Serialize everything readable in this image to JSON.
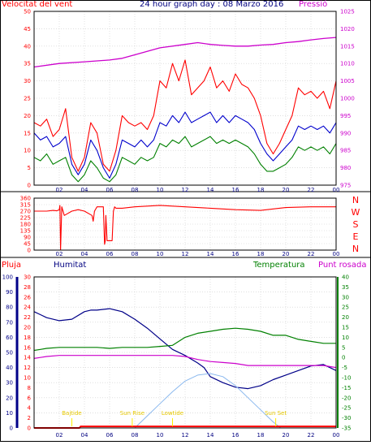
{
  "colors": {
    "red": "#ff0000",
    "blue": "#0000cc",
    "green": "#008000",
    "magenta": "#cc00cc",
    "navy": "#000080",
    "light_blue": "#8ab8ee",
    "dark_blue": "#000088",
    "yellow": "#ffee00",
    "gray_grid": "#cccccc"
  },
  "chart_data": [
    {
      "type": "line",
      "title": "24 hour graph day : 08 Marzo 2016",
      "left_label": "Velocitat del vent",
      "right_label": "Pressió",
      "ylim_left": [
        0,
        50
      ],
      "ylim_right": [
        975,
        1025
      ],
      "yticks_left": [
        "0",
        "5",
        "10",
        "15",
        "20",
        "25",
        "30",
        "35",
        "40",
        "45",
        "50"
      ],
      "yticks_right": [
        "975",
        "980",
        "985",
        "990",
        "995",
        "1000",
        "1005",
        "1010",
        "1015",
        "1020",
        "1025"
      ],
      "x_hours": [
        "02",
        "04",
        "06",
        "08",
        "10",
        "12",
        "14",
        "16",
        "18",
        "20",
        "22",
        "00"
      ],
      "series": [
        {
          "role": "gust",
          "color": "#ff0000",
          "x": [
            0,
            0.5,
            1,
            1.5,
            2,
            2.5,
            3,
            3.5,
            4,
            4.5,
            5,
            5.5,
            6,
            6.5,
            7,
            7.5,
            8,
            8.5,
            9,
            9.5,
            10,
            10.5,
            11,
            11.5,
            12,
            12.5,
            13,
            13.5,
            14,
            14.5,
            15,
            15.5,
            16,
            16.5,
            17,
            17.5,
            18,
            18.5,
            19,
            19.5,
            20,
            20.5,
            21,
            21.5,
            22,
            22.5,
            23,
            23.5,
            24
          ],
          "values": [
            18,
            17,
            19,
            14,
            16,
            22,
            8,
            4,
            8,
            18,
            15,
            6,
            4,
            10,
            20,
            18,
            17,
            18,
            16,
            20,
            30,
            28,
            35,
            30,
            36,
            26,
            28,
            30,
            34,
            28,
            30,
            27,
            32,
            29,
            28,
            25,
            20,
            12,
            9,
            12,
            16,
            20,
            28,
            26,
            27,
            25,
            27,
            22,
            30
          ]
        },
        {
          "role": "mean",
          "color": "#0000cc",
          "x": [
            0,
            0.5,
            1,
            1.5,
            2,
            2.5,
            3,
            3.5,
            4,
            4.5,
            5,
            5.5,
            6,
            6.5,
            7,
            7.5,
            8,
            8.5,
            9,
            9.5,
            10,
            10.5,
            11,
            11.5,
            12,
            12.5,
            13,
            13.5,
            14,
            14.5,
            15,
            15.5,
            16,
            16.5,
            17,
            17.5,
            18,
            18.5,
            19,
            19.5,
            20,
            20.5,
            21,
            21.5,
            22,
            22.5,
            23,
            23.5,
            24
          ],
          "values": [
            15,
            13,
            14,
            11,
            12,
            14,
            6,
            3,
            6,
            13,
            10,
            5,
            2,
            6,
            13,
            12,
            11,
            13,
            11,
            13,
            18,
            17,
            20,
            18,
            21,
            18,
            19,
            20,
            21,
            18,
            20,
            18,
            20,
            19,
            18,
            16,
            12,
            9,
            7,
            9,
            11,
            13,
            17,
            16,
            17,
            16,
            17,
            15,
            18
          ]
        },
        {
          "role": "low",
          "color": "#008000",
          "x": [
            0,
            0.5,
            1,
            1.5,
            2,
            2.5,
            3,
            3.5,
            4,
            4.5,
            5,
            5.5,
            6,
            6.5,
            7,
            7.5,
            8,
            8.5,
            9,
            9.5,
            10,
            10.5,
            11,
            11.5,
            12,
            12.5,
            13,
            13.5,
            14,
            14.5,
            15,
            15.5,
            16,
            16.5,
            17,
            17.5,
            18,
            18.5,
            19,
            19.5,
            20,
            20.5,
            21,
            21.5,
            22,
            22.5,
            23,
            23.5,
            24
          ],
          "values": [
            8,
            7,
            9,
            6,
            7,
            8,
            3,
            1,
            3,
            7,
            5,
            2,
            1,
            3,
            8,
            7,
            6,
            8,
            7,
            8,
            12,
            11,
            13,
            12,
            14,
            11,
            12,
            13,
            14,
            12,
            13,
            12,
            13,
            12,
            11,
            9,
            6,
            4,
            4,
            5,
            6,
            8,
            11,
            10,
            11,
            10,
            11,
            9,
            12
          ]
        },
        {
          "role": "pressure",
          "color": "#cc00cc",
          "x": [
            0,
            2,
            4,
            6,
            7,
            8,
            10,
            12,
            13,
            14,
            15,
            16,
            17,
            18,
            19,
            20,
            21,
            22,
            23,
            24
          ],
          "values": [
            1009,
            1010,
            1010.5,
            1011,
            1011.5,
            1012.5,
            1014.5,
            1015.5,
            1016,
            1015.5,
            1015.2,
            1015,
            1015,
            1015.3,
            1015.5,
            1016,
            1016.3,
            1016.8,
            1017.2,
            1017.5
          ]
        }
      ]
    },
    {
      "type": "line",
      "role": "wind_direction",
      "ylim": [
        0,
        360
      ],
      "yticks": [
        "0",
        "45",
        "90",
        "135",
        "180",
        "225",
        "270",
        "315",
        "360"
      ],
      "compass": [
        "N",
        "W",
        "S",
        "E",
        "N"
      ],
      "x_hours": [
        "02",
        "04",
        "06",
        "08",
        "10",
        "12",
        "14",
        "16",
        "18",
        "20",
        "22",
        "00"
      ],
      "series": [
        {
          "role": "direction",
          "color": "#ff0000",
          "x": [
            0,
            1,
            1.5,
            1.8,
            2.0,
            2.05,
            2.1,
            2.2,
            2.4,
            3,
            3.5,
            4,
            4.6,
            4.7,
            4.8,
            5,
            5.5,
            5.6,
            5.65,
            5.7,
            5.8,
            6.2,
            6.3,
            6.4,
            6.5,
            7,
            8,
            10,
            12,
            14,
            16,
            18,
            20,
            22,
            24
          ],
          "values": [
            270,
            270,
            275,
            272,
            280,
            310,
            0,
            300,
            240,
            270,
            280,
            270,
            240,
            200,
            270,
            300,
            300,
            40,
            60,
            240,
            65,
            65,
            270,
            300,
            290,
            290,
            300,
            310,
            300,
            290,
            280,
            275,
            295,
            300,
            300
          ]
        }
      ]
    },
    {
      "type": "line",
      "labels": {
        "rain": "Pluja",
        "humidity": "Humitat",
        "temperature": "Temperatura",
        "dew_point": "Punt rosada"
      },
      "ylim_humidity": [
        0,
        100
      ],
      "ylim_rain": [
        0,
        30
      ],
      "ylim_temperature": [
        -35,
        40
      ],
      "yticks_humidity": [
        "0",
        "10",
        "20",
        "30",
        "40",
        "50",
        "60",
        "70",
        "80",
        "90",
        "100"
      ],
      "yticks_rain": [
        "0",
        "2",
        "4",
        "6",
        "8",
        "10",
        "12",
        "14",
        "16",
        "18",
        "20",
        "22",
        "24",
        "26",
        "28",
        "30"
      ],
      "yticks_temperature": [
        "-35",
        "-30",
        "-25",
        "-20",
        "-15",
        "-10",
        "-5",
        "0",
        "5",
        "10",
        "15",
        "20",
        "25",
        "30",
        "35",
        "40"
      ],
      "x_hours": [
        "02",
        "04",
        "06",
        "08",
        "10",
        "12",
        "14",
        "16",
        "18",
        "20",
        "22",
        "00"
      ],
      "annotations": [
        {
          "text": "Bajtide",
          "x": 3.0
        },
        {
          "text": "Sun Rise",
          "x": 7.8
        },
        {
          "text": "Lowtide",
          "x": 11.0
        },
        {
          "text": "Sun Set",
          "x": 19.2
        }
      ],
      "series": [
        {
          "role": "humidity",
          "color": "#000088",
          "x": [
            0,
            0.5,
            1,
            2,
            3,
            4,
            4.5,
            5,
            6,
            7,
            8,
            9,
            10,
            11,
            12,
            13,
            13.5,
            14,
            15,
            16,
            17,
            18,
            19,
            20,
            21,
            22,
            23,
            24
          ],
          "values": [
            77,
            75,
            73,
            71,
            72,
            77,
            78,
            78,
            79,
            77,
            72,
            66,
            59,
            52,
            48,
            43,
            40,
            34,
            30,
            27,
            26,
            28,
            32,
            35,
            38,
            41,
            42,
            38
          ]
        },
        {
          "role": "temperature",
          "color": "#008000",
          "x": [
            0,
            0.5,
            1,
            2,
            3,
            4,
            5,
            6,
            7,
            8,
            9,
            10,
            11,
            12,
            13,
            14,
            15,
            16,
            17,
            18,
            19,
            20,
            21,
            22,
            23,
            24
          ],
          "values": [
            3.5,
            4,
            4.5,
            5,
            5,
            5,
            5,
            4.5,
            5,
            5,
            5,
            5.5,
            6,
            10,
            12,
            13,
            14,
            14.5,
            14,
            13,
            11,
            11,
            9,
            8,
            7,
            7
          ]
        },
        {
          "role": "dew_point",
          "color": "#cc00cc",
          "x": [
            0,
            0.5,
            1,
            2,
            3,
            4,
            5,
            6,
            7,
            8,
            9,
            10,
            11,
            12,
            13,
            14,
            15,
            16,
            17,
            18,
            19,
            20,
            21,
            22,
            23,
            24
          ],
          "values": [
            -0.5,
            0,
            0.5,
            1,
            1,
            1,
            1,
            1,
            1,
            1,
            1,
            1,
            1,
            0.5,
            -1,
            -2,
            -2.5,
            -3,
            -4,
            -4,
            -4,
            -4,
            -4,
            -4,
            -4,
            -5
          ]
        },
        {
          "role": "solar",
          "color": "#8ab8ee",
          "x": [
            8.0,
            9,
            10,
            11,
            12,
            13,
            14,
            15,
            16,
            17,
            18,
            19,
            19.6
          ],
          "values": [
            0,
            8,
            16,
            24,
            31,
            35,
            36,
            34,
            28,
            20,
            12,
            4,
            0
          ]
        },
        {
          "role": "rain",
          "color": "#ff0000",
          "x": [
            0,
            3.6,
            3.7,
            24
          ],
          "values": [
            0,
            0,
            0.3,
            0.3
          ]
        }
      ]
    }
  ]
}
